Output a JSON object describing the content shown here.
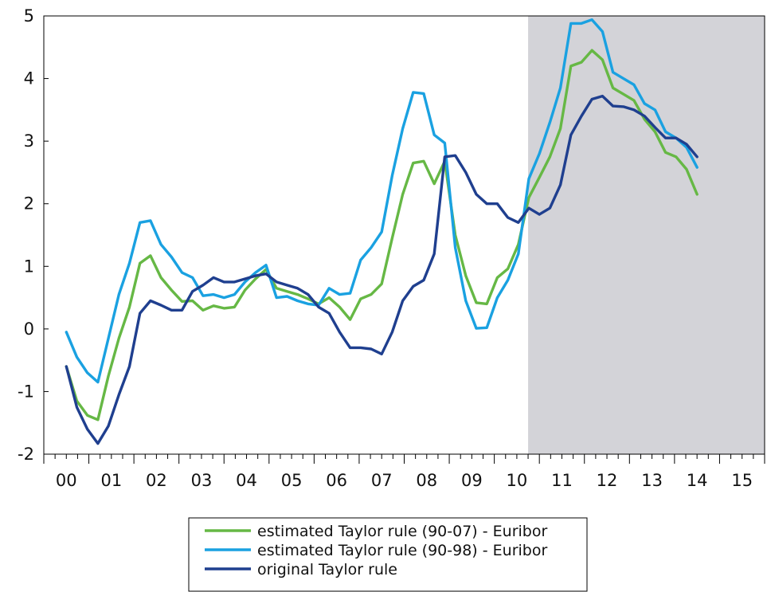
{
  "chart_data": {
    "type": "line",
    "title": "",
    "xlabel": "",
    "ylabel": "",
    "xlim": [
      0,
      16
    ],
    "ylim": [
      -2,
      5
    ],
    "y_ticks": [
      -2,
      -1,
      0,
      1,
      2,
      3,
      4,
      5
    ],
    "x_tick_labels": [
      "00",
      "01",
      "02",
      "03",
      "04",
      "05",
      "06",
      "07",
      "08",
      "09",
      "10",
      "11",
      "12",
      "13",
      "14",
      "15"
    ],
    "grid": false,
    "shaded_region": {
      "x_start": 10.75,
      "x_end": 16,
      "color": "#d3d3d8"
    },
    "legend_position": "bottom-center",
    "series": [
      {
        "name": "estimated Taylor rule (90-07) - Euribor",
        "color": "#66b845",
        "values": [
          -0.6,
          -1.15,
          -1.38,
          -1.45,
          -0.75,
          -0.15,
          0.35,
          1.05,
          1.17,
          0.82,
          0.62,
          0.44,
          0.45,
          0.3,
          0.37,
          0.33,
          0.35,
          0.62,
          0.8,
          0.95,
          0.65,
          0.6,
          0.55,
          0.48,
          0.4,
          0.5,
          0.35,
          0.15,
          0.48,
          0.55,
          0.72,
          1.45,
          2.15,
          2.65,
          2.68,
          2.32,
          2.68,
          1.5,
          0.85,
          0.42,
          0.4,
          0.82,
          0.96,
          1.35,
          2.1,
          2.42,
          2.75,
          3.2,
          4.2,
          4.26,
          4.45,
          4.3,
          3.85,
          3.75,
          3.65,
          3.35,
          3.15,
          2.82,
          2.75,
          2.55,
          2.15
        ]
      },
      {
        "name": "estimated Taylor rule (90-98) - Euribor",
        "color": "#1aa1e1",
        "values": [
          -0.05,
          -0.45,
          -0.7,
          -0.85,
          -0.15,
          0.55,
          1.05,
          1.7,
          1.73,
          1.35,
          1.15,
          0.9,
          0.82,
          0.53,
          0.55,
          0.5,
          0.55,
          0.75,
          0.9,
          1.02,
          0.5,
          0.52,
          0.45,
          0.4,
          0.38,
          0.65,
          0.55,
          0.57,
          1.1,
          1.3,
          1.55,
          2.45,
          3.2,
          3.78,
          3.76,
          3.1,
          2.97,
          1.3,
          0.45,
          0.01,
          0.02,
          0.5,
          0.78,
          1.2,
          2.4,
          2.8,
          3.3,
          3.85,
          4.88,
          4.88,
          4.94,
          4.75,
          4.1,
          4.0,
          3.9,
          3.6,
          3.5,
          3.15,
          3.05,
          2.9,
          2.58
        ]
      },
      {
        "name": "original Taylor rule",
        "color": "#1f3f8f",
        "values": [
          -0.6,
          -1.25,
          -1.6,
          -1.83,
          -1.55,
          -1.05,
          -0.6,
          0.25,
          0.45,
          0.38,
          0.3,
          0.3,
          0.6,
          0.7,
          0.82,
          0.75,
          0.75,
          0.8,
          0.85,
          0.88,
          0.75,
          0.7,
          0.65,
          0.55,
          0.35,
          0.25,
          -0.05,
          -0.3,
          -0.3,
          -0.32,
          -0.4,
          -0.05,
          0.45,
          0.68,
          0.78,
          1.2,
          2.75,
          2.77,
          2.5,
          2.15,
          2.0,
          2.0,
          1.78,
          1.7,
          1.93,
          1.83,
          1.93,
          2.3,
          3.1,
          3.4,
          3.67,
          3.72,
          3.56,
          3.55,
          3.5,
          3.4,
          3.22,
          3.05,
          3.05,
          2.95,
          2.75
        ]
      }
    ]
  }
}
